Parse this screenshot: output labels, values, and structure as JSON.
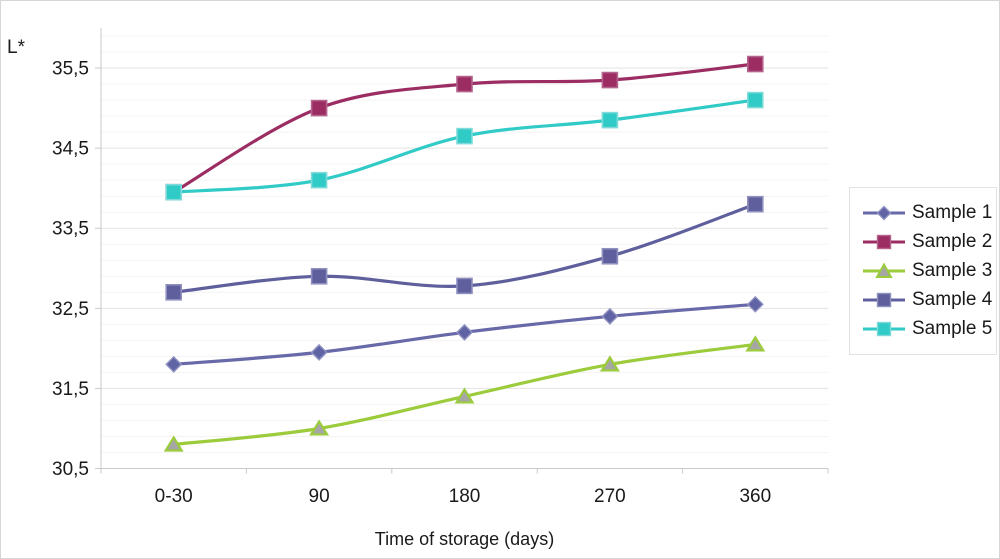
{
  "window": {
    "background": "#ffffff",
    "border_color": "#d6d6d6",
    "text_color": "#1a1a1a"
  },
  "chart_data": {
    "type": "line",
    "title": "",
    "xlabel": "Time of storage (days)",
    "ylabel": "L*",
    "categories": [
      "0-30",
      "90",
      "180",
      "270",
      "360"
    ],
    "y_axis": {
      "min": 30.5,
      "max": 36.0,
      "major_step": 1.0,
      "minor_step": 0.2,
      "tick_values": [
        30.5,
        31.5,
        32.5,
        33.5,
        34.5,
        35.5
      ],
      "tick_labels": [
        "30,5",
        "31,5",
        "32,5",
        "33,5",
        "34,5",
        "35,5"
      ]
    },
    "grid": {
      "minor_color": "#f3f3f3",
      "major_color": "#e3e3e3",
      "axis_color": "#c9c9c9",
      "grid_on": true
    },
    "legend_position": "right",
    "series": [
      {
        "name": "Sample 1",
        "marker": "diamond",
        "color": "#6769a8",
        "marker_fill": "#6064a4",
        "marker_stroke": "#9093c2",
        "values": [
          31.8,
          31.95,
          32.2,
          32.4,
          32.55
        ]
      },
      {
        "name": "Sample 2",
        "marker": "square",
        "color": "#9b2d63",
        "marker_fill": "#9b2d63",
        "marker_stroke": "#b4638c",
        "values": [
          33.95,
          35.0,
          35.3,
          35.35,
          35.55
        ]
      },
      {
        "name": "Sample 3",
        "marker": "triangle",
        "color": "#9ccb3c",
        "marker_fill": "#a6a6a6",
        "marker_stroke": "#9ccb3c",
        "values": [
          30.8,
          31.0,
          31.4,
          31.8,
          32.05
        ]
      },
      {
        "name": "Sample 4",
        "marker": "square",
        "color": "#5e5f9c",
        "marker_fill": "#5e5f9c",
        "marker_stroke": "#8f90be",
        "values": [
          32.7,
          32.9,
          32.78,
          33.15,
          33.8
        ]
      },
      {
        "name": "Sample 5",
        "marker": "square",
        "color": "#30cac7",
        "marker_fill": "#30cac7",
        "marker_stroke": "#7edbd9",
        "values": [
          33.95,
          34.1,
          34.65,
          34.85,
          35.1
        ]
      }
    ]
  }
}
